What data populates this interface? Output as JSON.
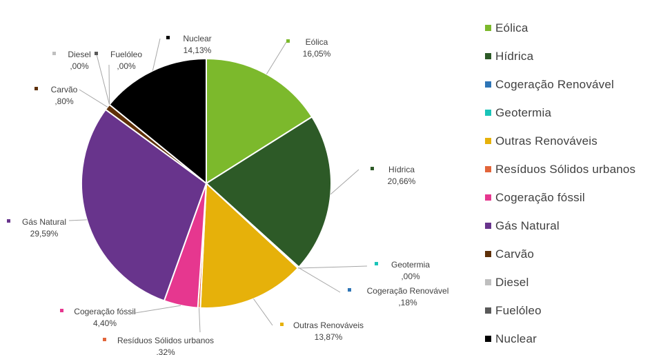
{
  "chart_data": {
    "type": "pie",
    "legend_position": "right",
    "slices": [
      {
        "name": "Eólica",
        "value_label": "16,05%",
        "value": 16.05,
        "color": "#7cb92c"
      },
      {
        "name": "Hídrica",
        "value_label": "20,66%",
        "value": 20.66,
        "color": "#2d5a27"
      },
      {
        "name": "Cogeração Renovável",
        "value_label": ",18%",
        "value": 0.18,
        "color": "#2e75b6"
      },
      {
        "name": "Geotermia",
        "value_label": ",00%",
        "value": 0.0,
        "color": "#19c4b8"
      },
      {
        "name": "Outras Renováveis",
        "value_label": "13,87%",
        "value": 13.87,
        "color": "#e6b10a"
      },
      {
        "name": "Resíduos Sólidos urbanos",
        "value_label": ",32%",
        "value": 0.32,
        "color": "#e2653a"
      },
      {
        "name": "Cogeração fóssil",
        "value_label": "4,40%",
        "value": 4.4,
        "color": "#e6378f"
      },
      {
        "name": "Gás Natural",
        "value_label": "29,59%",
        "value": 29.59,
        "color": "#68348c"
      },
      {
        "name": "Carvão",
        "value_label": ",80%",
        "value": 0.8,
        "color": "#5e3008"
      },
      {
        "name": "Diesel",
        "value_label": ",00%",
        "value": 0.0,
        "color": "#bfbfbf"
      },
      {
        "name": "Fuelóleo",
        "value_label": ",00%",
        "value": 0.0,
        "color": "#595959"
      },
      {
        "name": "Nuclear",
        "value_label": "14,13%",
        "value": 14.13,
        "color": "#000000"
      }
    ]
  }
}
